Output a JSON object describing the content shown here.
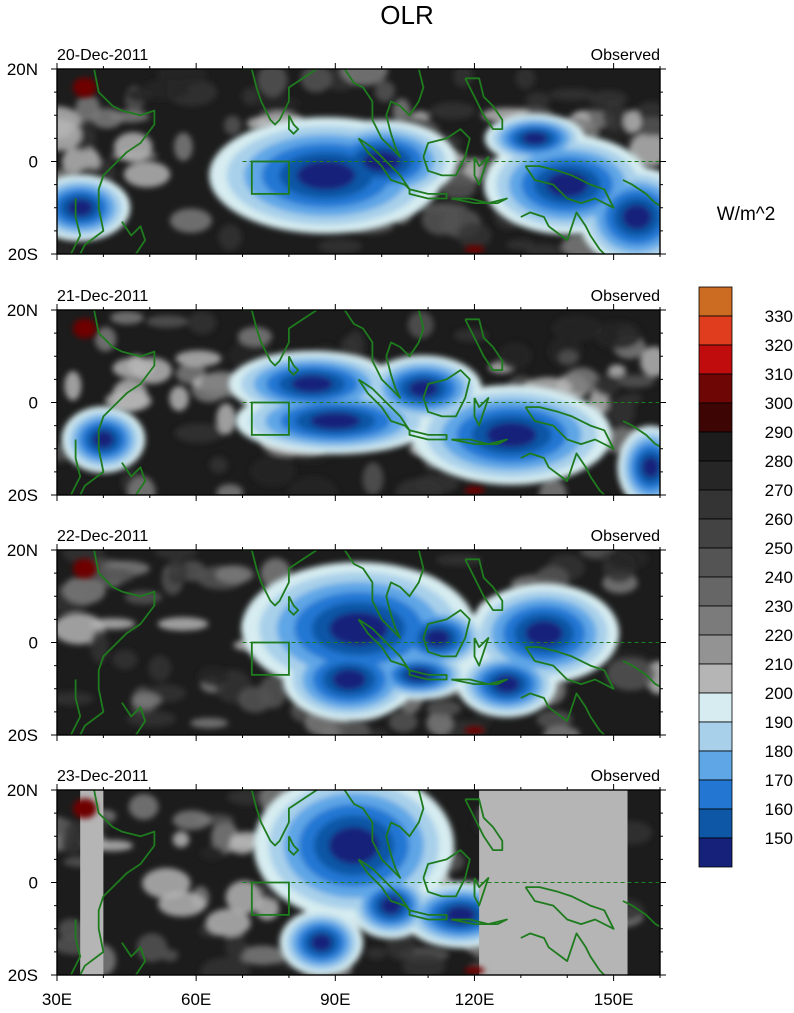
{
  "figure": {
    "title": "OLR",
    "units_label": "W/m^2",
    "source_tag": "Observed"
  },
  "chart_data": {
    "type": "heatmap",
    "variable": "OLR",
    "units": "W/m^2",
    "xlim": [
      30,
      160
    ],
    "ylim": [
      -20,
      20
    ],
    "x_ticks": [
      "30E",
      "60E",
      "90E",
      "120E",
      "150E"
    ],
    "x_tick_values": [
      30,
      60,
      90,
      120,
      150
    ],
    "y_ticks": [
      "20N",
      "0",
      "20S"
    ],
    "y_tick_values": [
      20,
      0,
      -20
    ],
    "legend_placement": "right",
    "colorbar": {
      "labels": [
        "330",
        "320",
        "310",
        "300",
        "290",
        "280",
        "270",
        "260",
        "250",
        "240",
        "230",
        "220",
        "210",
        "200",
        "190",
        "180",
        "170",
        "160",
        "150"
      ],
      "colors": [
        "#cc6b22",
        "#e03c1e",
        "#c00c0c",
        "#6e0606",
        "#3e0505",
        "#1c1c1c",
        "#262626",
        "#343434",
        "#434343",
        "#545454",
        "#666666",
        "#7b7b7b",
        "#939393",
        "#b5b5b5",
        "#d6ecf0",
        "#a8d0ea",
        "#5ea6e6",
        "#2377d3",
        "#0e56a6",
        "#16227a"
      ]
    },
    "panels": [
      {
        "date": "20-Dec-2011",
        "label": "Observed",
        "deep_convection": [
          {
            "lon": 88,
            "lat": -3,
            "rlon": 14,
            "rlat": 7
          },
          {
            "lon": 100,
            "lat": 0,
            "rlon": 9,
            "rlat": 5
          },
          {
            "lon": 133,
            "lat": 5,
            "rlon": 6,
            "rlat": 3
          },
          {
            "lon": 140,
            "lat": -5,
            "rlon": 10,
            "rlat": 6
          },
          {
            "lon": 155,
            "lat": -12,
            "rlon": 7,
            "rlat": 6
          },
          {
            "lon": 35,
            "lat": -10,
            "rlon": 6,
            "rlat": 4
          }
        ]
      },
      {
        "date": "21-Dec-2011",
        "label": "Observed",
        "deep_convection": [
          {
            "lon": 85,
            "lat": 4,
            "rlon": 10,
            "rlat": 4
          },
          {
            "lon": 90,
            "lat": -4,
            "rlon": 12,
            "rlat": 4
          },
          {
            "lon": 109,
            "lat": 3,
            "rlon": 7,
            "rlat": 4
          },
          {
            "lon": 128,
            "lat": -7,
            "rlon": 12,
            "rlat": 6
          },
          {
            "lon": 40,
            "lat": -8,
            "rlon": 5,
            "rlat": 4
          },
          {
            "lon": 158,
            "lat": -14,
            "rlon": 4,
            "rlat": 5
          }
        ]
      },
      {
        "date": "22-Dec-2011",
        "label": "Observed",
        "deep_convection": [
          {
            "lon": 95,
            "lat": 3,
            "rlon": 14,
            "rlat": 8
          },
          {
            "lon": 93,
            "lat": -8,
            "rlon": 8,
            "rlat": 5
          },
          {
            "lon": 112,
            "lat": 1,
            "rlon": 6,
            "rlat": 4
          },
          {
            "lon": 135,
            "lat": 2,
            "rlon": 9,
            "rlat": 6
          },
          {
            "lon": 127,
            "lat": -9,
            "rlon": 6,
            "rlat": 4
          },
          {
            "lon": 108,
            "lat": -7,
            "rlon": 6,
            "rlat": 3
          }
        ]
      },
      {
        "date": "23-Dec-2011",
        "label": "Observed",
        "deep_convection": [
          {
            "lon": 94,
            "lat": 8,
            "rlon": 12,
            "rlat": 9
          },
          {
            "lon": 87,
            "lat": -13,
            "rlon": 5,
            "rlat": 4
          },
          {
            "lon": 102,
            "lat": -5,
            "rlon": 5,
            "rlat": 4
          },
          {
            "lon": 117,
            "lat": -7,
            "rlon": 7,
            "rlat": 4
          }
        ],
        "missing_regions": [
          {
            "lon0": 121,
            "lon1": 153,
            "lat0": -20,
            "lat1": 20
          },
          {
            "lon0": 35,
            "lon1": 40,
            "lat0": -20,
            "lat1": 20
          }
        ]
      }
    ]
  }
}
